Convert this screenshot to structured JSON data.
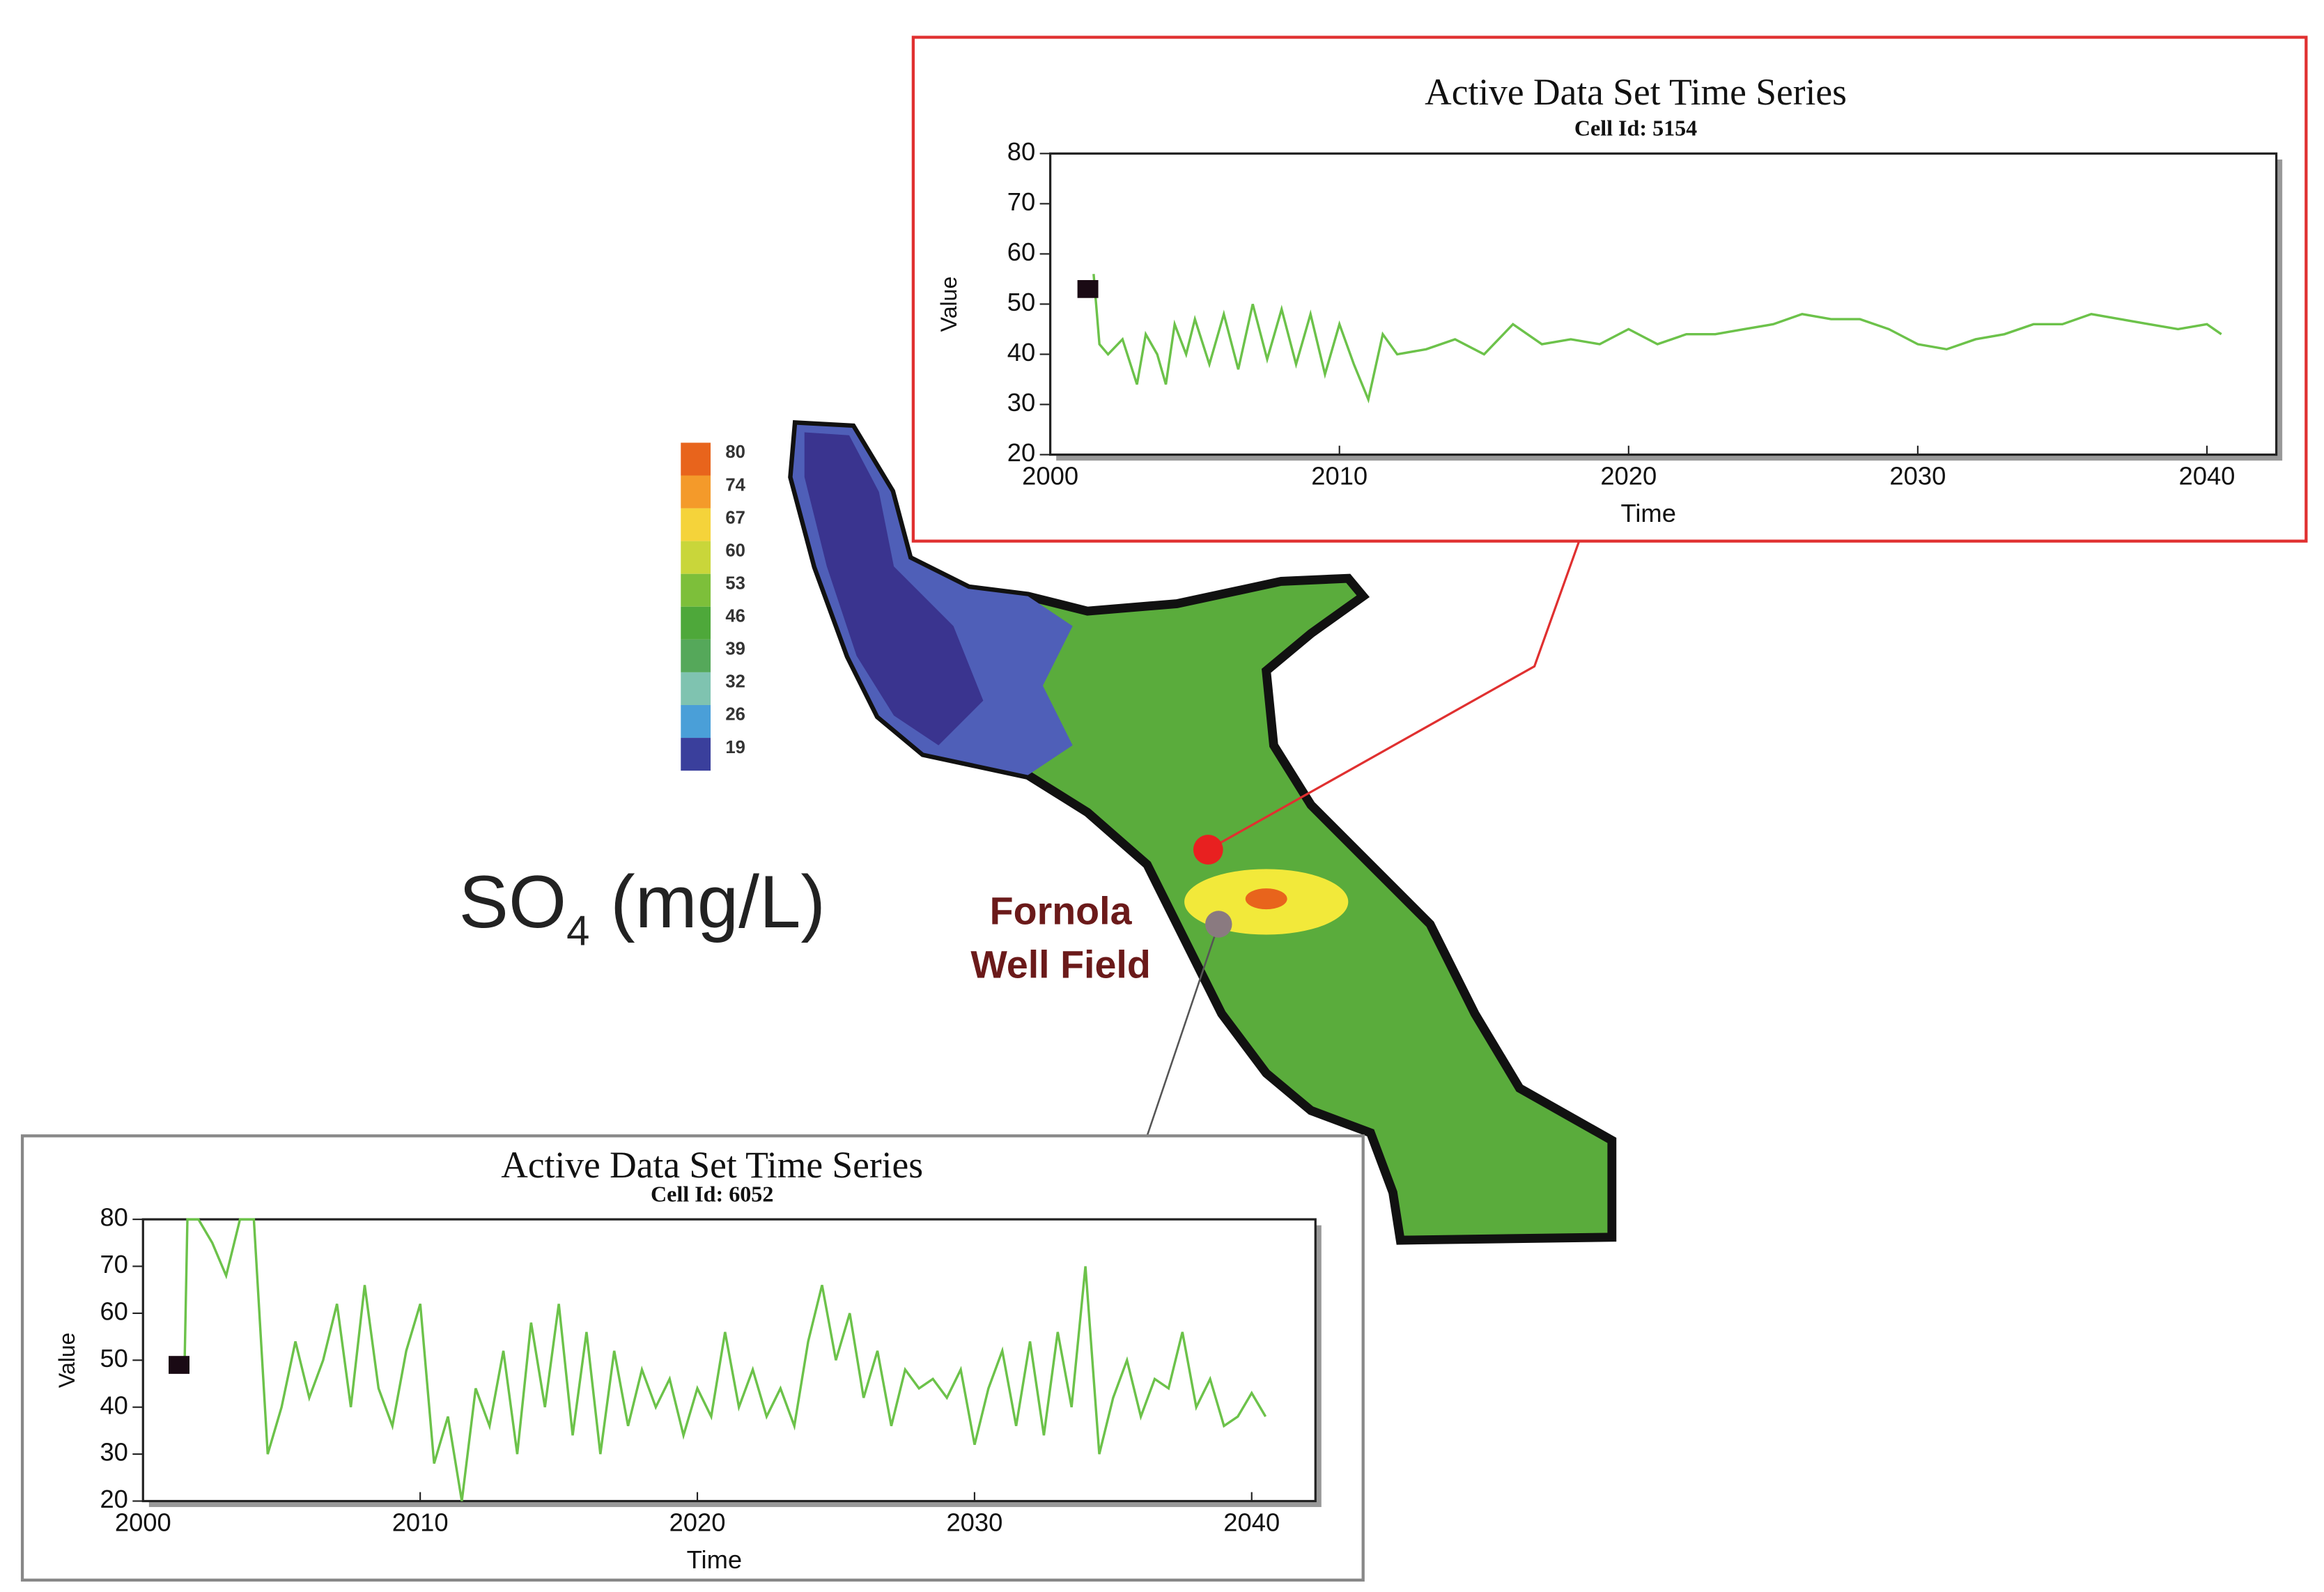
{
  "chart_data": [
    {
      "type": "line",
      "title": "Active Data Set Time Series",
      "subtitle": "Cell Id: 5154",
      "xlabel": "Time",
      "ylabel": "Value",
      "color": "#6cc24a",
      "x": [
        2001.5,
        2001.7,
        2002,
        2002.5,
        2003,
        2003.3,
        2003.7,
        2004,
        2004.3,
        2004.7,
        2005,
        2005.5,
        2006,
        2006.5,
        2007,
        2007.5,
        2008,
        2008.5,
        2009,
        2009.5,
        2010,
        2010.5,
        2011,
        2011.5,
        2012,
        2013,
        2014,
        2015,
        2016,
        2017,
        2018,
        2019,
        2020,
        2021,
        2022,
        2023,
        2024,
        2025,
        2026,
        2027,
        2028,
        2029,
        2030,
        2031,
        2032,
        2033,
        2034,
        2035,
        2036,
        2037,
        2038,
        2039,
        2040,
        2040.5
      ],
      "values": [
        56,
        42,
        40,
        43,
        34,
        44,
        40,
        34,
        46,
        40,
        47,
        38,
        48,
        37,
        50,
        39,
        49,
        38,
        48,
        36,
        46,
        38,
        31,
        44,
        40,
        41,
        43,
        40,
        46,
        42,
        43,
        42,
        45,
        42,
        44,
        44,
        45,
        46,
        48,
        47,
        47,
        45,
        42,
        41,
        43,
        44,
        46,
        46,
        48,
        47,
        46,
        45,
        46,
        44
      ],
      "marker": {
        "x": 2001.3,
        "y": 53
      },
      "xlim": [
        2000,
        2042.4
      ],
      "xticks": [
        2000,
        2010,
        2020,
        2030,
        2040
      ],
      "ylim": [
        20,
        80
      ],
      "yticks": [
        20,
        30,
        40,
        50,
        60,
        70,
        80
      ]
    },
    {
      "type": "line",
      "title": "Active Data Set Time Series",
      "subtitle": "Cell Id: 6052",
      "xlabel": "Time",
      "ylabel": "Value",
      "color": "#6cc24a",
      "x": [
        2001.5,
        2001.6,
        2002,
        2002.5,
        2003,
        2003.5,
        2004,
        2004.5,
        2005,
        2005.5,
        2006,
        2006.5,
        2007,
        2007.5,
        2008,
        2008.5,
        2009,
        2009.5,
        2010,
        2010.5,
        2011,
        2011.5,
        2012,
        2012.5,
        2013,
        2013.5,
        2014,
        2014.5,
        2015,
        2015.5,
        2016,
        2016.5,
        2017,
        2017.5,
        2018,
        2018.5,
        2019,
        2019.5,
        2020,
        2020.5,
        2021,
        2021.5,
        2022,
        2022.5,
        2023,
        2023.5,
        2024,
        2024.5,
        2025,
        2025.5,
        2026,
        2026.5,
        2027,
        2027.5,
        2028,
        2028.5,
        2029,
        2029.5,
        2030,
        2030.5,
        2031,
        2031.5,
        2032,
        2032.5,
        2033,
        2033.5,
        2034,
        2034.5,
        2035,
        2035.5,
        2036,
        2036.5,
        2037,
        2037.5,
        2038,
        2038.5,
        2039,
        2039.5,
        2040,
        2040.5
      ],
      "values": [
        49,
        80,
        80,
        75,
        68,
        80,
        80,
        30,
        40,
        54,
        42,
        50,
        62,
        40,
        66,
        44,
        36,
        52,
        62,
        28,
        38,
        20,
        44,
        36,
        52,
        30,
        58,
        40,
        62,
        34,
        56,
        30,
        52,
        36,
        48,
        40,
        46,
        34,
        44,
        38,
        56,
        40,
        48,
        38,
        44,
        36,
        54,
        66,
        50,
        60,
        42,
        52,
        36,
        48,
        44,
        46,
        42,
        48,
        32,
        44,
        52,
        36,
        54,
        34,
        56,
        40,
        70,
        30,
        42,
        50,
        38,
        46,
        44,
        56,
        40,
        46,
        36,
        38,
        43,
        38
      ],
      "marker": {
        "x": 2001.3,
        "y": 49
      },
      "xlim": [
        2000,
        2042.3
      ],
      "xticks": [
        2000,
        2010,
        2020,
        2030,
        2040
      ],
      "ylim": [
        20,
        80
      ],
      "yticks": [
        20,
        30,
        40,
        50,
        60,
        70,
        80
      ]
    }
  ],
  "map": {
    "label": {
      "main": "SO",
      "sub": "4",
      "unit": " (mg/L)"
    },
    "well_field": [
      "Fornola",
      "Well Field"
    ],
    "legend": {
      "values": [
        80,
        74,
        67,
        60,
        53,
        46,
        39,
        32,
        26,
        19
      ],
      "colors": [
        "#e8641c",
        "#f49a2a",
        "#f5d33a",
        "#c9d63a",
        "#7dbf3a",
        "#4ea83a",
        "#55a85a",
        "#7fc3b0",
        "#4a9fd8",
        "#3a3f9c"
      ]
    }
  }
}
